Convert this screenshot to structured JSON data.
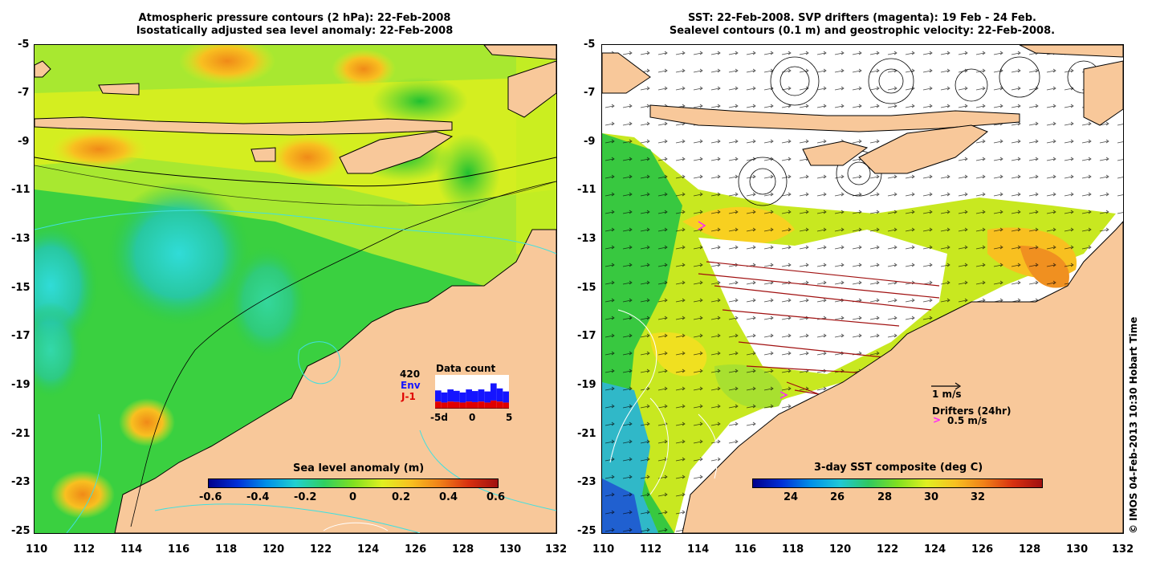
{
  "left_panel": {
    "title_line1": "Atmospheric pressure contours (2 hPa): 22-Feb-2008",
    "title_line2": "Isostatically adjusted sea level anomaly: 22-Feb-2008",
    "colorbar": {
      "title": "Sea level anomaly (m)",
      "ticks": [
        "-0.6",
        "-0.4",
        "-0.2",
        "0",
        "0.2",
        "0.4",
        "0.6"
      ]
    },
    "data_count": {
      "title": "Data count",
      "max_label": "420",
      "env_label": "Env",
      "j1_label": "J-1",
      "x_ticks": [
        "-5d",
        "0",
        "5"
      ],
      "env_color": "#1515ff",
      "j1_color": "#e00000"
    }
  },
  "right_panel": {
    "title_line1": "SST: 22-Feb-2008. SVP drifters (magenta): 19 Feb - 24 Feb.",
    "title_line2": "Sealevel contours (0.1 m) and geostrophic velocity: 22-Feb-2008.",
    "colorbar": {
      "title": "3-day SST composite (deg C)",
      "ticks": [
        "24",
        "26",
        "28",
        "30",
        "32"
      ]
    },
    "velocity_legend": "1 m/s",
    "drifter_legend_title": "Drifters (24hr)",
    "drifter_legend_speed": "0.5 m/s",
    "drifter_symbol": ">"
  },
  "axes": {
    "lat_ticks": [
      "-5",
      "-7",
      "-9",
      "-11",
      "-13",
      "-15",
      "-17",
      "-19",
      "-21",
      "-23",
      "-25"
    ],
    "lon_ticks": [
      "110",
      "112",
      "114",
      "116",
      "118",
      "120",
      "122",
      "124",
      "126",
      "128",
      "130",
      "132"
    ]
  },
  "credit": "© IMOS 04-Feb-2013 10:30 Hobart Time",
  "colors": {
    "land": "#f8c89a",
    "ocean_green": "#2ecc40",
    "ocean_yellow": "#d6f020",
    "ocean_cyan": "#30d8d0",
    "contour_cyan": "#40e0e0",
    "drifter_track": "#a01010",
    "drifter_magenta": "#ff20ff"
  }
}
